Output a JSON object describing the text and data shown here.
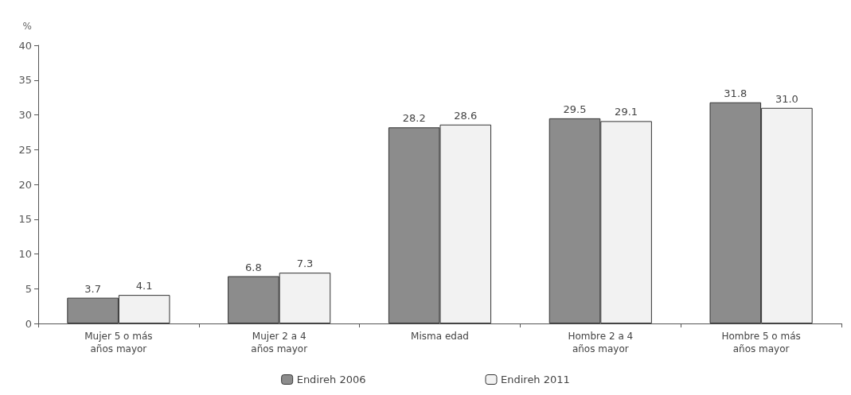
{
  "chart_data": {
    "type": "bar",
    "ylabel": "%",
    "categories": [
      "Mujer 5 o más\naños mayor",
      "Mujer 2 a 4\naños mayor",
      "Misma edad",
      "Hombre 2 a 4\naños mayor",
      "Hombre 5 o más\naños mayor"
    ],
    "series": [
      {
        "name": "Endireh 2006",
        "color": "#8c8c8c",
        "values": [
          3.7,
          6.8,
          28.2,
          29.5,
          31.8
        ],
        "value_labels": [
          "3.7",
          "6.8",
          "28.2",
          "29.5",
          "31.8"
        ]
      },
      {
        "name": "Endireh 2011",
        "color": "#f2f2f2",
        "values": [
          4.1,
          7.3,
          28.6,
          29.1,
          31.0
        ],
        "value_labels": [
          "4.1",
          "7.3",
          "28.6",
          "29.1",
          "31.0"
        ]
      }
    ],
    "ylim": [
      0,
      40
    ],
    "yticks": [
      0,
      5,
      10,
      15,
      20,
      25,
      30,
      35,
      40
    ],
    "grid": false,
    "legend": "bottom"
  }
}
